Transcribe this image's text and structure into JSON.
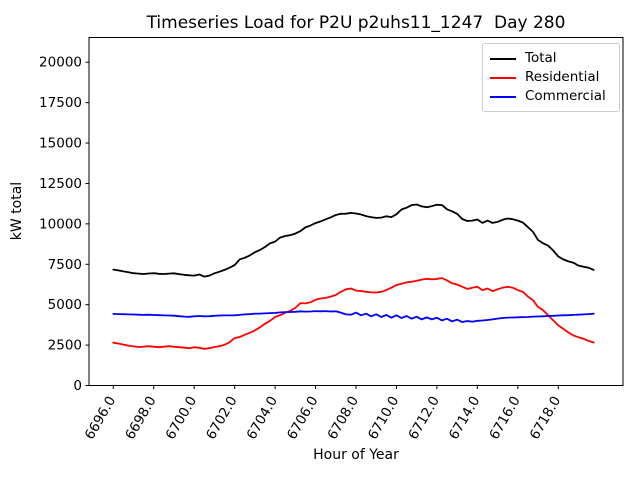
{
  "chart_data": {
    "type": "line",
    "title": "Timeseries Load for P2U p2uhs11_1247  Day 280",
    "xlabel": "Hour of Year",
    "ylabel": "kW total",
    "grid": false,
    "legend_position": "upper right",
    "xlim": [
      6694.8,
      6721.2
    ],
    "ylim": [
      0,
      21530
    ],
    "xticks": [
      6696,
      6698,
      6700,
      6702,
      6704,
      6706,
      6708,
      6710,
      6712,
      6714,
      6716,
      6718
    ],
    "xtick_labels": [
      "6696.0",
      "6698.0",
      "6700.0",
      "6702.0",
      "6704.0",
      "6706.0",
      "6708.0",
      "6710.0",
      "6712.0",
      "6714.0",
      "6716.0",
      "6718.0"
    ],
    "yticks": [
      0,
      2500,
      5000,
      7500,
      10000,
      12500,
      15000,
      17500,
      20000
    ],
    "ytick_labels": [
      "0",
      "2500",
      "5000",
      "7500",
      "10000",
      "12500",
      "15000",
      "17500",
      "20000"
    ],
    "x": [
      6696.0,
      6696.25,
      6696.5,
      6696.75,
      6697.0,
      6697.25,
      6697.5,
      6697.75,
      6698.0,
      6698.25,
      6698.5,
      6698.75,
      6699.0,
      6699.25,
      6699.5,
      6699.75,
      6700.0,
      6700.25,
      6700.5,
      6700.75,
      6701.0,
      6701.25,
      6701.5,
      6701.75,
      6702.0,
      6702.25,
      6702.5,
      6702.75,
      6703.0,
      6703.25,
      6703.5,
      6703.75,
      6704.0,
      6704.25,
      6704.5,
      6704.75,
      6705.0,
      6705.25,
      6705.5,
      6705.75,
      6706.0,
      6706.25,
      6706.5,
      6706.75,
      6707.0,
      6707.25,
      6707.5,
      6707.75,
      6708.0,
      6708.25,
      6708.5,
      6708.75,
      6709.0,
      6709.25,
      6709.5,
      6709.75,
      6710.0,
      6710.25,
      6710.5,
      6710.75,
      6711.0,
      6711.25,
      6711.5,
      6711.75,
      6712.0,
      6712.25,
      6712.5,
      6712.75,
      6713.0,
      6713.25,
      6713.5,
      6713.75,
      6714.0,
      6714.25,
      6714.5,
      6714.75,
      6715.0,
      6715.25,
      6715.5,
      6715.75,
      6716.0,
      6716.25,
      6716.5,
      6716.75,
      6717.0,
      6717.25,
      6717.5,
      6717.75,
      6718.0,
      6718.25,
      6718.5,
      6718.75,
      6719.0,
      6719.25,
      6719.5,
      6719.75
    ],
    "series": [
      {
        "name": "Total",
        "color": "#000000",
        "values": [
          7170,
          7120,
          7060,
          7010,
          6950,
          6920,
          6900,
          6930,
          6950,
          6910,
          6900,
          6920,
          6940,
          6890,
          6850,
          6820,
          6800,
          6870,
          6740,
          6800,
          6940,
          7040,
          7150,
          7290,
          7450,
          7800,
          7900,
          8050,
          8250,
          8380,
          8570,
          8800,
          8900,
          9150,
          9250,
          9300,
          9400,
          9550,
          9780,
          9900,
          10050,
          10150,
          10280,
          10400,
          10550,
          10620,
          10630,
          10680,
          10640,
          10580,
          10480,
          10410,
          10370,
          10390,
          10470,
          10420,
          10600,
          10890,
          11000,
          11160,
          11200,
          11080,
          11030,
          11100,
          11180,
          11160,
          10900,
          10780,
          10620,
          10300,
          10180,
          10200,
          10270,
          10060,
          10200,
          10060,
          10120,
          10250,
          10330,
          10290,
          10200,
          10080,
          9800,
          9500,
          9000,
          8800,
          8650,
          8350,
          7980,
          7800,
          7680,
          7600,
          7420,
          7350,
          7290,
          7150
        ]
      },
      {
        "name": "Residential",
        "color": "#ff0000",
        "values": [
          2650,
          2600,
          2530,
          2470,
          2420,
          2380,
          2400,
          2430,
          2400,
          2370,
          2400,
          2430,
          2400,
          2370,
          2340,
          2310,
          2370,
          2330,
          2265,
          2310,
          2380,
          2430,
          2520,
          2680,
          2930,
          3000,
          3135,
          3260,
          3410,
          3600,
          3820,
          4000,
          4240,
          4350,
          4500,
          4620,
          4800,
          5100,
          5080,
          5150,
          5300,
          5380,
          5420,
          5500,
          5600,
          5800,
          5950,
          6000,
          5870,
          5840,
          5800,
          5760,
          5755,
          5800,
          5900,
          6050,
          6215,
          6300,
          6380,
          6420,
          6480,
          6550,
          6600,
          6570,
          6590,
          6650,
          6500,
          6320,
          6250,
          6110,
          5970,
          6050,
          6110,
          5900,
          6000,
          5840,
          5950,
          6050,
          6110,
          6050,
          5900,
          5800,
          5500,
          5280,
          4860,
          4655,
          4345,
          4030,
          3720,
          3500,
          3280,
          3100,
          2980,
          2890,
          2760,
          2660
        ]
      },
      {
        "name": "Commercial",
        "color": "#0000ff",
        "values": [
          4430,
          4420,
          4410,
          4400,
          4390,
          4380,
          4370,
          4380,
          4360,
          4350,
          4340,
          4330,
          4320,
          4290,
          4260,
          4250,
          4280,
          4300,
          4280,
          4290,
          4310,
          4330,
          4340,
          4340,
          4345,
          4370,
          4400,
          4420,
          4445,
          4450,
          4460,
          4480,
          4490,
          4520,
          4540,
          4550,
          4560,
          4590,
          4570,
          4580,
          4600,
          4590,
          4600,
          4580,
          4590,
          4510,
          4400,
          4380,
          4510,
          4345,
          4445,
          4280,
          4405,
          4240,
          4365,
          4195,
          4345,
          4175,
          4300,
          4130,
          4255,
          4090,
          4215,
          4090,
          4195,
          4030,
          4130,
          3965,
          4070,
          3930,
          3990,
          3950,
          4000,
          4020,
          4050,
          4090,
          4140,
          4175,
          4200,
          4210,
          4220,
          4230,
          4240,
          4260,
          4270,
          4280,
          4300,
          4310,
          4330,
          4345,
          4350,
          4370,
          4380,
          4400,
          4420,
          4445
        ]
      }
    ]
  }
}
